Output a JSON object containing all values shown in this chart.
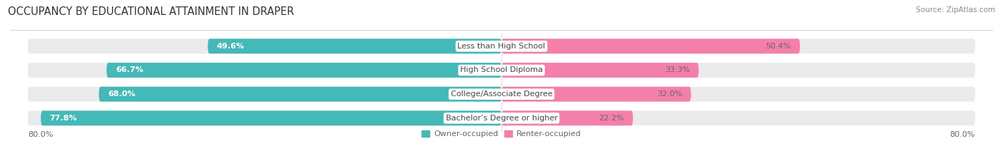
{
  "title": "OCCUPANCY BY EDUCATIONAL ATTAINMENT IN DRAPER",
  "source": "Source: ZipAtlas.com",
  "categories": [
    "Less than High School",
    "High School Diploma",
    "College/Associate Degree",
    "Bachelor’s Degree or higher"
  ],
  "owner_values": [
    49.6,
    66.7,
    68.0,
    77.8
  ],
  "renter_values": [
    50.4,
    33.3,
    32.0,
    22.2
  ],
  "owner_color": "#45b8b8",
  "renter_color": "#f47fab",
  "bar_bg_color": "#ebebeb",
  "bg_color": "#ffffff",
  "label_color": "#666666",
  "cat_label_color": "#444444",
  "x_left_label": "80.0%",
  "x_right_label": "80.0%",
  "legend_owner": "Owner-occupied",
  "legend_renter": "Renter-occupied",
  "title_fontsize": 10.5,
  "source_fontsize": 7.5,
  "bar_label_fontsize": 8,
  "category_fontsize": 8,
  "axis_label_fontsize": 8,
  "bar_height": 0.62,
  "xlim_left": -83,
  "xlim_right": 83,
  "total_bar_width": 80.0
}
